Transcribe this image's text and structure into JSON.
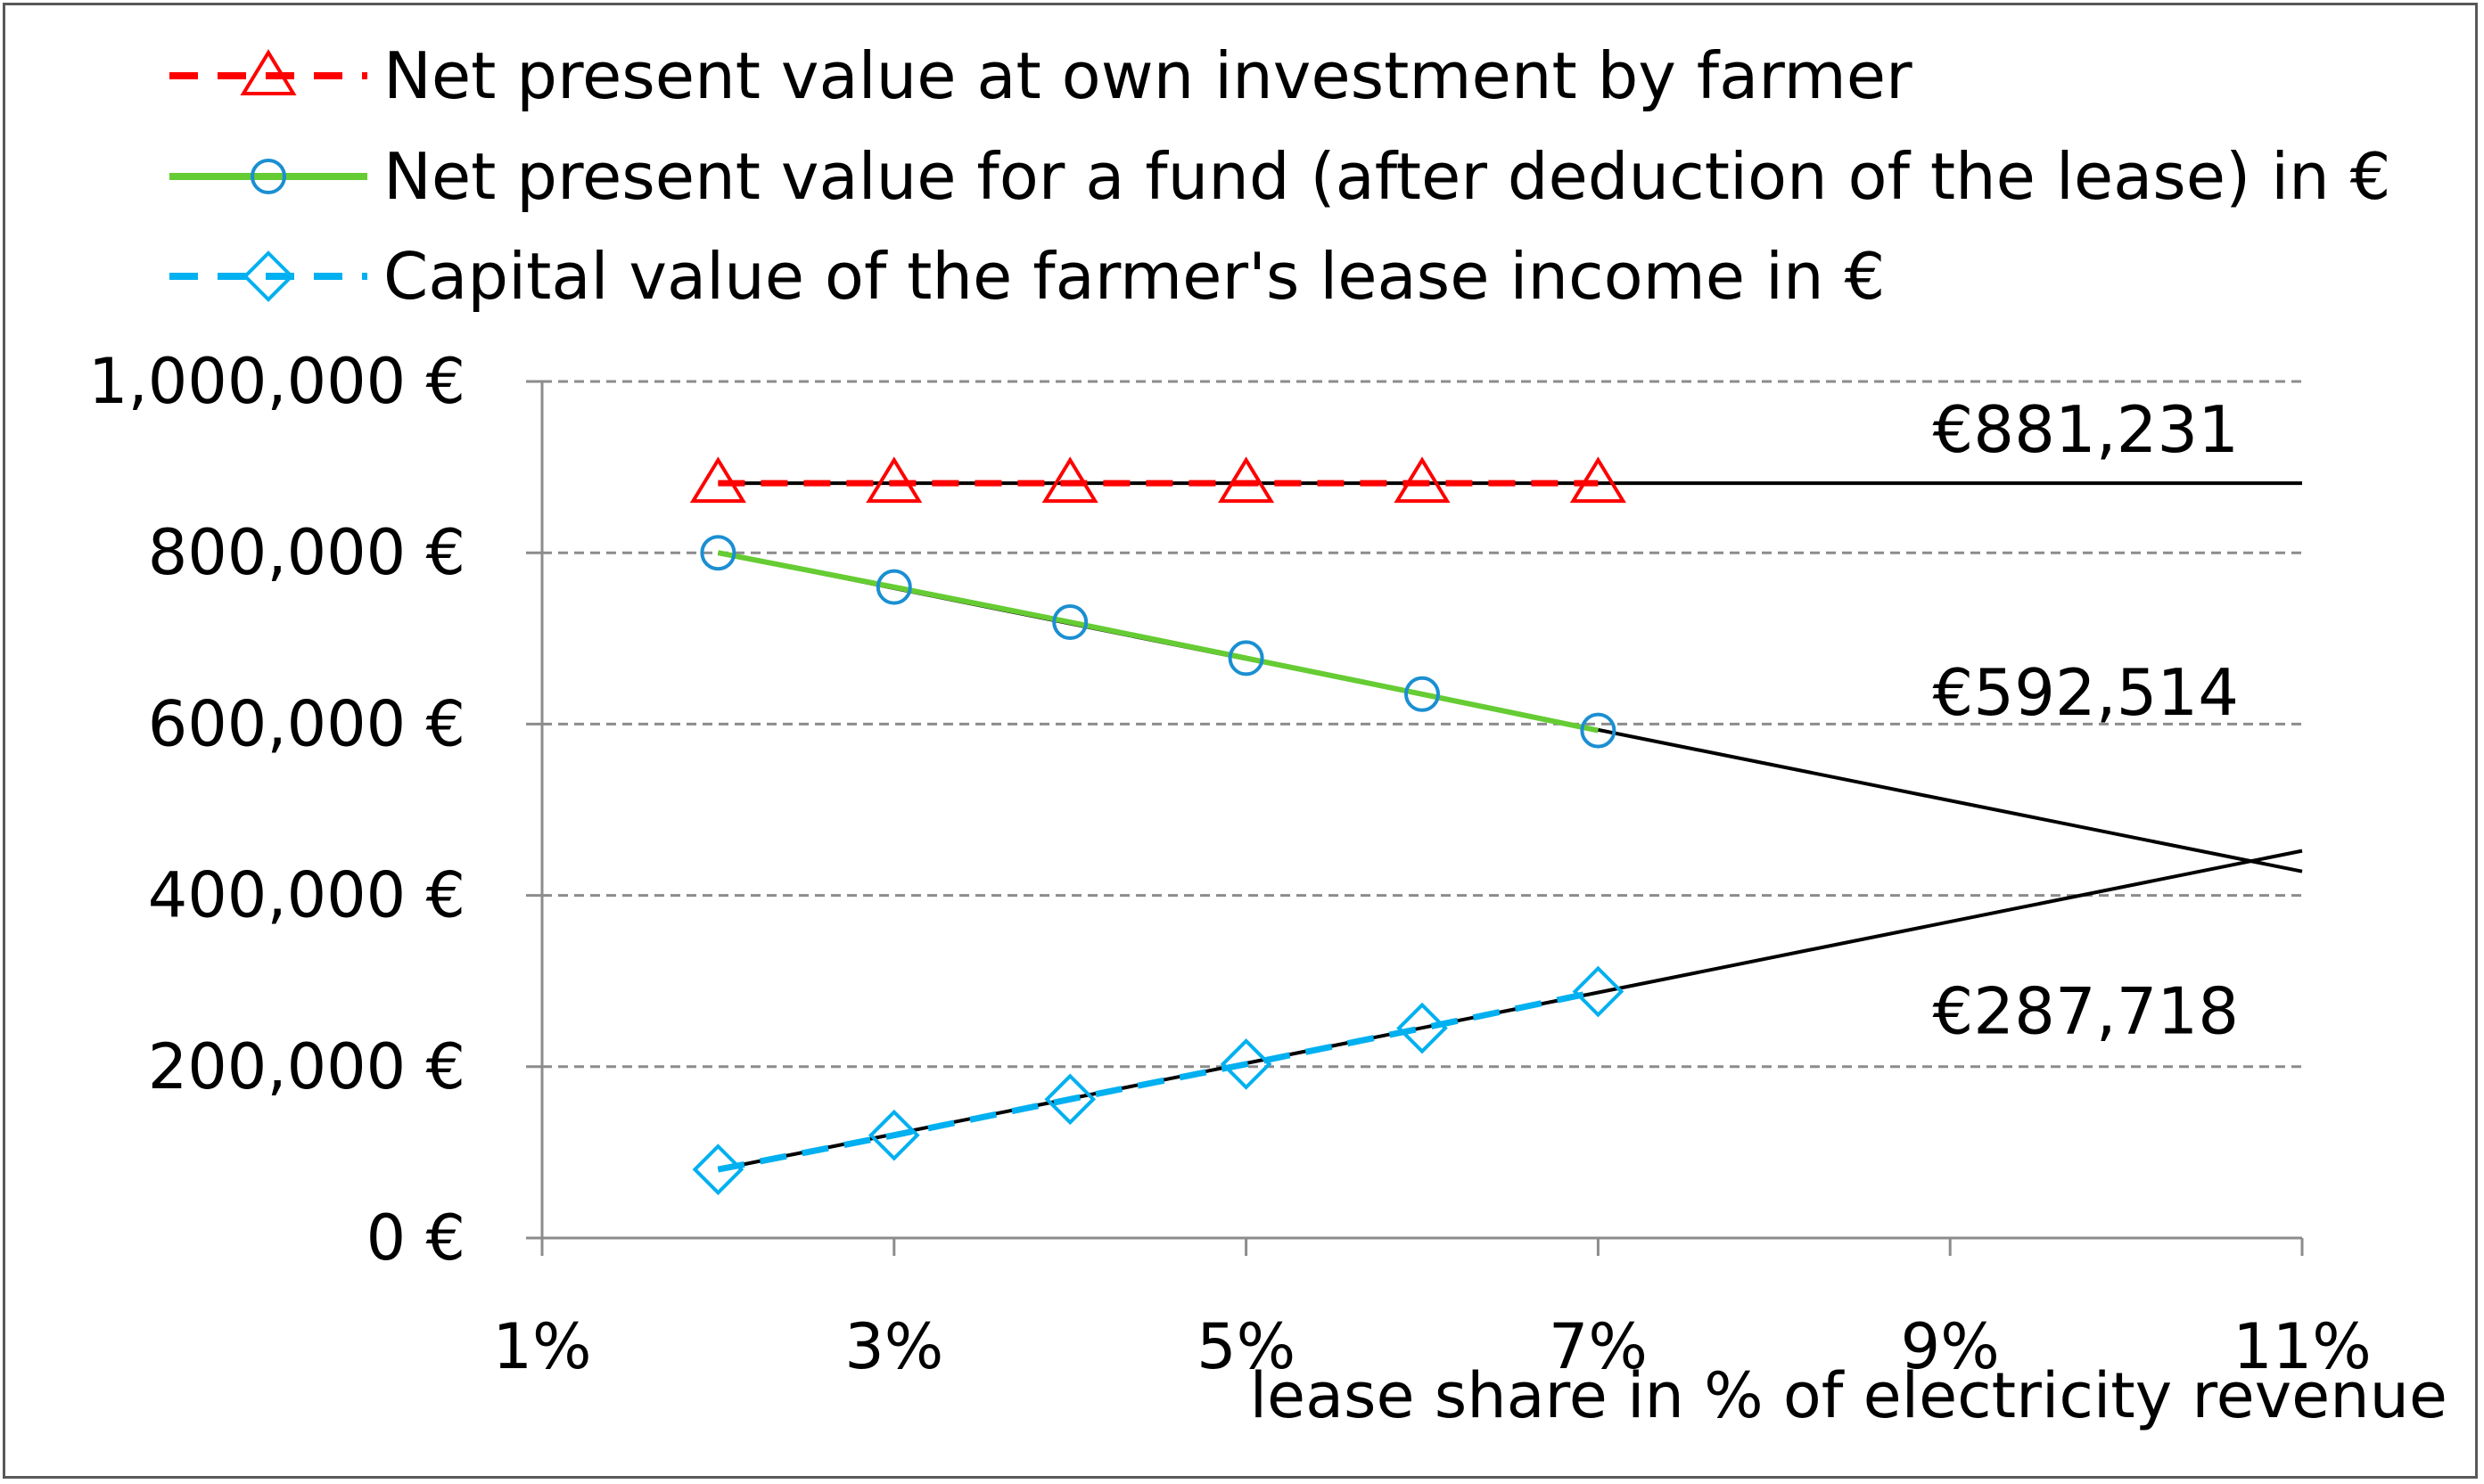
{
  "chart_data": {
    "type": "line",
    "title": "",
    "xlabel": "lease share in % of electricity revenue",
    "ylabel": "",
    "xlim": [
      1,
      11
    ],
    "ylim": [
      0,
      1000000
    ],
    "x_ticks": [
      1,
      3,
      5,
      7,
      9,
      11
    ],
    "x_tick_labels": [
      "1%",
      "3%",
      "5%",
      "7%",
      "9%",
      "11%"
    ],
    "y_ticks": [
      0,
      200000,
      400000,
      600000,
      800000,
      1000000
    ],
    "y_tick_labels": [
      "0 €",
      "200,000 €",
      "400,000 €",
      "600,000 €",
      "800,000 €",
      "1,000,000 €"
    ],
    "grid": "horizontal dashed",
    "legend_position": "top",
    "x": [
      2,
      3,
      4,
      5,
      6,
      7
    ],
    "series": [
      {
        "name": "Net present value at own investment by farmer",
        "values": [
          881231,
          881231,
          881231,
          881231,
          881231,
          881231
        ],
        "color": "#ff0000",
        "line_style": "dashed",
        "marker": "triangle"
      },
      {
        "name": "Net present value for a fund (after deduction of the lease) in €",
        "values": [
          800000,
          760000,
          719000,
          677000,
          635000,
          592514
        ],
        "color": "#66cc33",
        "marker_color": "#1b8fd2",
        "line_style": "solid",
        "marker": "circle"
      },
      {
        "name": "Capital value of the farmer's lease income in €",
        "values": [
          80000,
          120000,
          162000,
          203000,
          245000,
          287718
        ],
        "color": "#00b0f0",
        "line_style": "dashed",
        "marker": "diamond"
      }
    ],
    "trendlines": [
      {
        "from": [
          2,
          881231
        ],
        "to": [
          11,
          881231
        ],
        "color": "#000000"
      },
      {
        "from": [
          2,
          800000
        ],
        "to": [
          11,
          428000
        ],
        "color": "#000000"
      },
      {
        "from": [
          2,
          80000
        ],
        "to": [
          11,
          452000
        ],
        "color": "#000000"
      }
    ],
    "annotations": [
      {
        "text": "€881,231",
        "x": 8.9,
        "y": 943000
      },
      {
        "text": "€592,514",
        "x": 8.9,
        "y": 636000
      },
      {
        "text": "€287,718",
        "x": 8.9,
        "y": 264000
      }
    ]
  }
}
